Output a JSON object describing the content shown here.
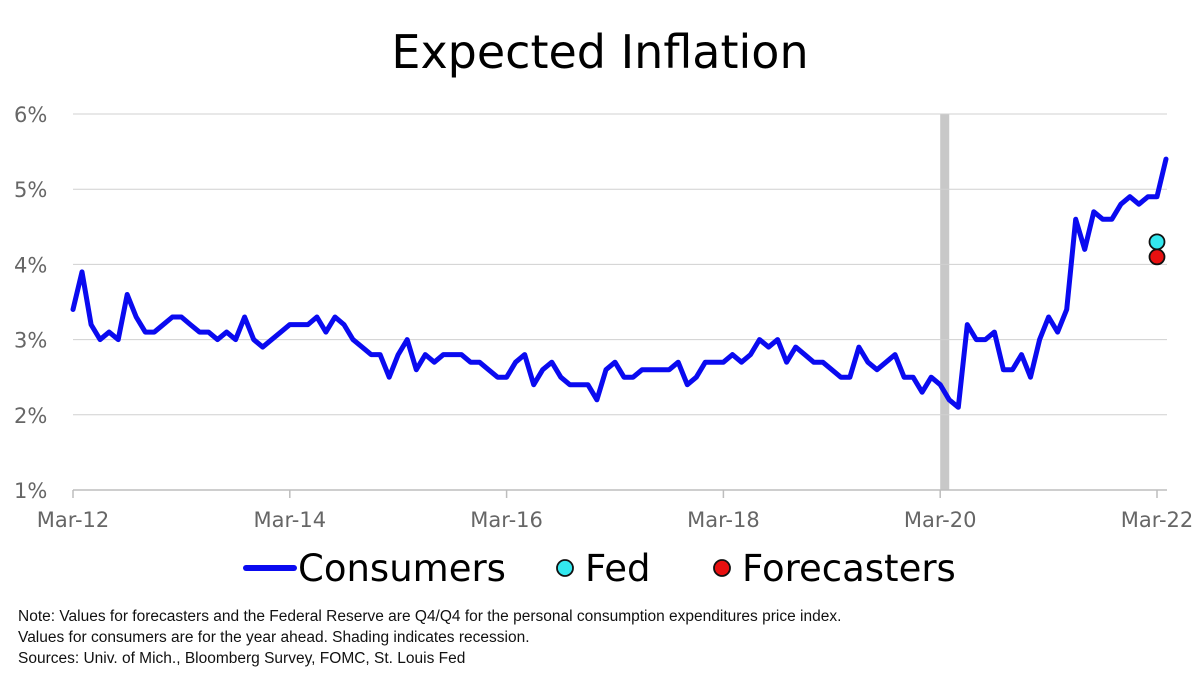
{
  "chart_data": {
    "type": "line",
    "title": "Expected Inflation",
    "xlabel": "",
    "ylabel": "",
    "ylim": [
      1,
      6
    ],
    "y_ticks": [
      "1%",
      "2%",
      "3%",
      "4%",
      "5%",
      "6%"
    ],
    "x_ticks": [
      "Mar-12",
      "Mar-14",
      "Mar-16",
      "Mar-18",
      "Mar-20",
      "Mar-22"
    ],
    "x_range": [
      "2012-03",
      "2022-03"
    ],
    "grid": "horizontal",
    "recession_shading": {
      "start": "2020-03",
      "end": "2020-04"
    },
    "legend_position": "bottom",
    "series": [
      {
        "name": "Consumers",
        "color": "#0a0af0",
        "kind": "line",
        "points": [
          [
            "2012-03",
            3.4
          ],
          [
            "2012-04",
            3.9
          ],
          [
            "2012-05",
            3.2
          ],
          [
            "2012-06",
            3.0
          ],
          [
            "2012-07",
            3.1
          ],
          [
            "2012-08",
            3.0
          ],
          [
            "2012-09",
            3.6
          ],
          [
            "2012-10",
            3.3
          ],
          [
            "2012-11",
            3.1
          ],
          [
            "2012-12",
            3.1
          ],
          [
            "2013-01",
            3.2
          ],
          [
            "2013-02",
            3.3
          ],
          [
            "2013-03",
            3.3
          ],
          [
            "2013-04",
            3.2
          ],
          [
            "2013-05",
            3.1
          ],
          [
            "2013-06",
            3.1
          ],
          [
            "2013-07",
            3.0
          ],
          [
            "2013-08",
            3.1
          ],
          [
            "2013-09",
            3.0
          ],
          [
            "2013-10",
            3.3
          ],
          [
            "2013-11",
            3.0
          ],
          [
            "2013-12",
            2.9
          ],
          [
            "2014-01",
            3.0
          ],
          [
            "2014-02",
            3.1
          ],
          [
            "2014-03",
            3.2
          ],
          [
            "2014-04",
            3.2
          ],
          [
            "2014-05",
            3.2
          ],
          [
            "2014-06",
            3.3
          ],
          [
            "2014-07",
            3.1
          ],
          [
            "2014-08",
            3.3
          ],
          [
            "2014-09",
            3.2
          ],
          [
            "2014-10",
            3.0
          ],
          [
            "2014-11",
            2.9
          ],
          [
            "2014-12",
            2.8
          ],
          [
            "2015-01",
            2.8
          ],
          [
            "2015-02",
            2.5
          ],
          [
            "2015-03",
            2.8
          ],
          [
            "2015-04",
            3.0
          ],
          [
            "2015-05",
            2.6
          ],
          [
            "2015-06",
            2.8
          ],
          [
            "2015-07",
            2.7
          ],
          [
            "2015-08",
            2.8
          ],
          [
            "2015-09",
            2.8
          ],
          [
            "2015-10",
            2.8
          ],
          [
            "2015-11",
            2.7
          ],
          [
            "2015-12",
            2.7
          ],
          [
            "2016-01",
            2.6
          ],
          [
            "2016-02",
            2.5
          ],
          [
            "2016-03",
            2.5
          ],
          [
            "2016-04",
            2.7
          ],
          [
            "2016-05",
            2.8
          ],
          [
            "2016-06",
            2.4
          ],
          [
            "2016-07",
            2.6
          ],
          [
            "2016-08",
            2.7
          ],
          [
            "2016-09",
            2.5
          ],
          [
            "2016-10",
            2.4
          ],
          [
            "2016-11",
            2.4
          ],
          [
            "2016-12",
            2.4
          ],
          [
            "2017-01",
            2.2
          ],
          [
            "2017-02",
            2.6
          ],
          [
            "2017-03",
            2.7
          ],
          [
            "2017-04",
            2.5
          ],
          [
            "2017-05",
            2.5
          ],
          [
            "2017-06",
            2.6
          ],
          [
            "2017-07",
            2.6
          ],
          [
            "2017-08",
            2.6
          ],
          [
            "2017-09",
            2.6
          ],
          [
            "2017-10",
            2.7
          ],
          [
            "2017-11",
            2.4
          ],
          [
            "2017-12",
            2.5
          ],
          [
            "2018-01",
            2.7
          ],
          [
            "2018-02",
            2.7
          ],
          [
            "2018-03",
            2.7
          ],
          [
            "2018-04",
            2.8
          ],
          [
            "2018-05",
            2.7
          ],
          [
            "2018-06",
            2.8
          ],
          [
            "2018-07",
            3.0
          ],
          [
            "2018-08",
            2.9
          ],
          [
            "2018-09",
            3.0
          ],
          [
            "2018-10",
            2.7
          ],
          [
            "2018-11",
            2.9
          ],
          [
            "2018-12",
            2.8
          ],
          [
            "2019-01",
            2.7
          ],
          [
            "2019-02",
            2.7
          ],
          [
            "2019-03",
            2.6
          ],
          [
            "2019-04",
            2.5
          ],
          [
            "2019-05",
            2.5
          ],
          [
            "2019-06",
            2.9
          ],
          [
            "2019-07",
            2.7
          ],
          [
            "2019-08",
            2.6
          ],
          [
            "2019-09",
            2.7
          ],
          [
            "2019-10",
            2.8
          ],
          [
            "2019-11",
            2.5
          ],
          [
            "2019-12",
            2.5
          ],
          [
            "2020-01",
            2.3
          ],
          [
            "2020-02",
            2.5
          ],
          [
            "2020-03",
            2.4
          ],
          [
            "2020-04",
            2.2
          ],
          [
            "2020-05",
            2.1
          ],
          [
            "2020-06",
            3.2
          ],
          [
            "2020-07",
            3.0
          ],
          [
            "2020-08",
            3.0
          ],
          [
            "2020-09",
            3.1
          ],
          [
            "2020-10",
            2.6
          ],
          [
            "2020-11",
            2.6
          ],
          [
            "2020-12",
            2.8
          ],
          [
            "2021-01",
            2.5
          ],
          [
            "2021-02",
            3.0
          ],
          [
            "2021-03",
            3.3
          ],
          [
            "2021-04",
            3.1
          ],
          [
            "2021-05",
            3.4
          ],
          [
            "2021-06",
            4.6
          ],
          [
            "2021-07",
            4.2
          ],
          [
            "2021-08",
            4.7
          ],
          [
            "2021-09",
            4.6
          ],
          [
            "2021-10",
            4.6
          ],
          [
            "2021-11",
            4.8
          ],
          [
            "2021-12",
            4.9
          ],
          [
            "2022-01",
            4.8
          ],
          [
            "2022-02",
            4.9
          ],
          [
            "2022-03",
            4.9
          ],
          [
            "2022-04",
            5.4
          ]
        ]
      },
      {
        "name": "Fed",
        "color": "#33e8ef",
        "kind": "point",
        "points": [
          [
            "2022-03",
            4.3
          ]
        ]
      },
      {
        "name": "Forecasters",
        "color": "#e81010",
        "kind": "point",
        "points": [
          [
            "2022-03",
            4.1
          ]
        ]
      }
    ]
  },
  "notes": {
    "line1": "Note: Values for forecasters and the Federal Reserve are Q4/Q4 for the personal consumption expenditures price index.",
    "line2": "Values for consumers are for the year ahead. Shading indicates recession.",
    "line3": "Sources: Univ. of Mich., Bloomberg Survey, FOMC, St. Louis Fed"
  }
}
